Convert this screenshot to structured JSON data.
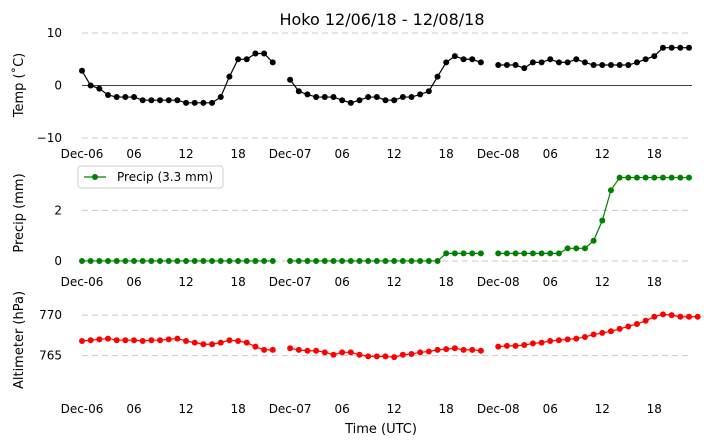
{
  "title": "Hoko 12/06/18 - 12/08/18",
  "xlabel": "Time (UTC)",
  "x_tick_labels": [
    "Dec-06",
    "06",
    "12",
    "18",
    "Dec-07",
    "06",
    "12",
    "18",
    "Dec-08",
    "06",
    "12",
    "18"
  ],
  "colors": {
    "temp": "#000000",
    "precip": "#008000",
    "alt": "#ff0000",
    "grid": "#c8c8c8"
  },
  "chart_data": [
    {
      "type": "line",
      "name": "temperature",
      "ylabel": "Temp (˚C)",
      "ylim": [
        -10,
        10
      ],
      "yticks": [
        10,
        0,
        -10
      ],
      "x_hours_start": 0,
      "x_hours_step": 1,
      "values": [
        2.8,
        0,
        -0.6,
        -1.8,
        -2.2,
        -2.2,
        -2.2,
        -2.8,
        -2.8,
        -2.8,
        -2.8,
        -2.8,
        -3.3,
        -3.3,
        -3.3,
        -3.3,
        -2.2,
        1.7,
        5,
        5,
        6.1,
        6.1,
        4.4,
        null,
        1.1,
        -1.1,
        -1.7,
        -2.2,
        -2.2,
        -2.2,
        -2.8,
        -3.3,
        -2.8,
        -2.2,
        -2.2,
        -2.8,
        -2.8,
        -2.2,
        -2.2,
        -1.7,
        -1.1,
        1.7,
        4.4,
        5.6,
        5,
        5,
        4.4,
        null,
        3.9,
        3.9,
        3.9,
        3.3,
        4.4,
        4.4,
        5,
        4.4,
        4.4,
        5,
        4.4,
        3.9,
        3.9,
        3.9,
        3.9,
        3.9,
        4.4,
        5,
        5.6,
        7.2,
        7.2,
        7.2,
        7.2
      ]
    },
    {
      "type": "line",
      "name": "precipitation",
      "ylabel": "Precip (mm)",
      "legend": "Precip (3.3 mm)",
      "legend_position": "top-left",
      "ylim": [
        -0.2,
        3.6
      ],
      "yticks": [
        2,
        0
      ],
      "x_hours_start": 0,
      "x_hours_step": 1,
      "values": [
        0,
        0,
        0,
        0,
        0,
        0,
        0,
        0,
        0,
        0,
        0,
        0,
        0,
        0,
        0,
        0,
        0,
        0,
        0,
        0,
        0,
        0,
        0,
        null,
        0,
        0,
        0,
        0,
        0,
        0,
        0,
        0,
        0,
        0,
        0,
        0,
        0,
        0,
        0,
        0,
        0,
        0,
        0.3,
        0.3,
        0.3,
        0.3,
        0.3,
        null,
        0.3,
        0.3,
        0.3,
        0.3,
        0.3,
        0.3,
        0.3,
        0.3,
        0.5,
        0.5,
        0.5,
        0.8,
        1.6,
        2.8,
        3.3,
        3.3,
        3.3,
        3.3,
        3.3,
        3.3,
        3.3,
        3.3,
        3.3
      ]
    },
    {
      "type": "line",
      "name": "altimeter",
      "ylabel": "Altimeter (hPa)",
      "ylim": [
        760,
        771.5
      ],
      "yticks": [
        770,
        765
      ],
      "x_hours_start": 0,
      "x_hours_step": 1,
      "values": [
        766.8,
        766.9,
        767,
        767.1,
        766.9,
        766.9,
        766.9,
        766.8,
        766.9,
        766.9,
        767,
        767.1,
        766.8,
        766.6,
        766.4,
        766.4,
        766.6,
        766.9,
        766.8,
        766.6,
        766.1,
        765.7,
        765.7,
        null,
        765.9,
        765.7,
        765.6,
        765.6,
        765.4,
        765.1,
        765.4,
        765.4,
        765.1,
        764.9,
        764.9,
        764.9,
        764.8,
        765.1,
        765.2,
        765.4,
        765.5,
        765.7,
        765.8,
        765.9,
        765.7,
        765.7,
        765.6,
        null,
        766.1,
        766.2,
        766.2,
        766.3,
        766.5,
        766.6,
        766.8,
        766.9,
        767,
        767.1,
        767.3,
        767.6,
        767.8,
        768,
        768.3,
        768.6,
        768.9,
        769.3,
        769.8,
        770.1,
        770,
        769.8,
        769.8,
        769.8
      ]
    }
  ]
}
